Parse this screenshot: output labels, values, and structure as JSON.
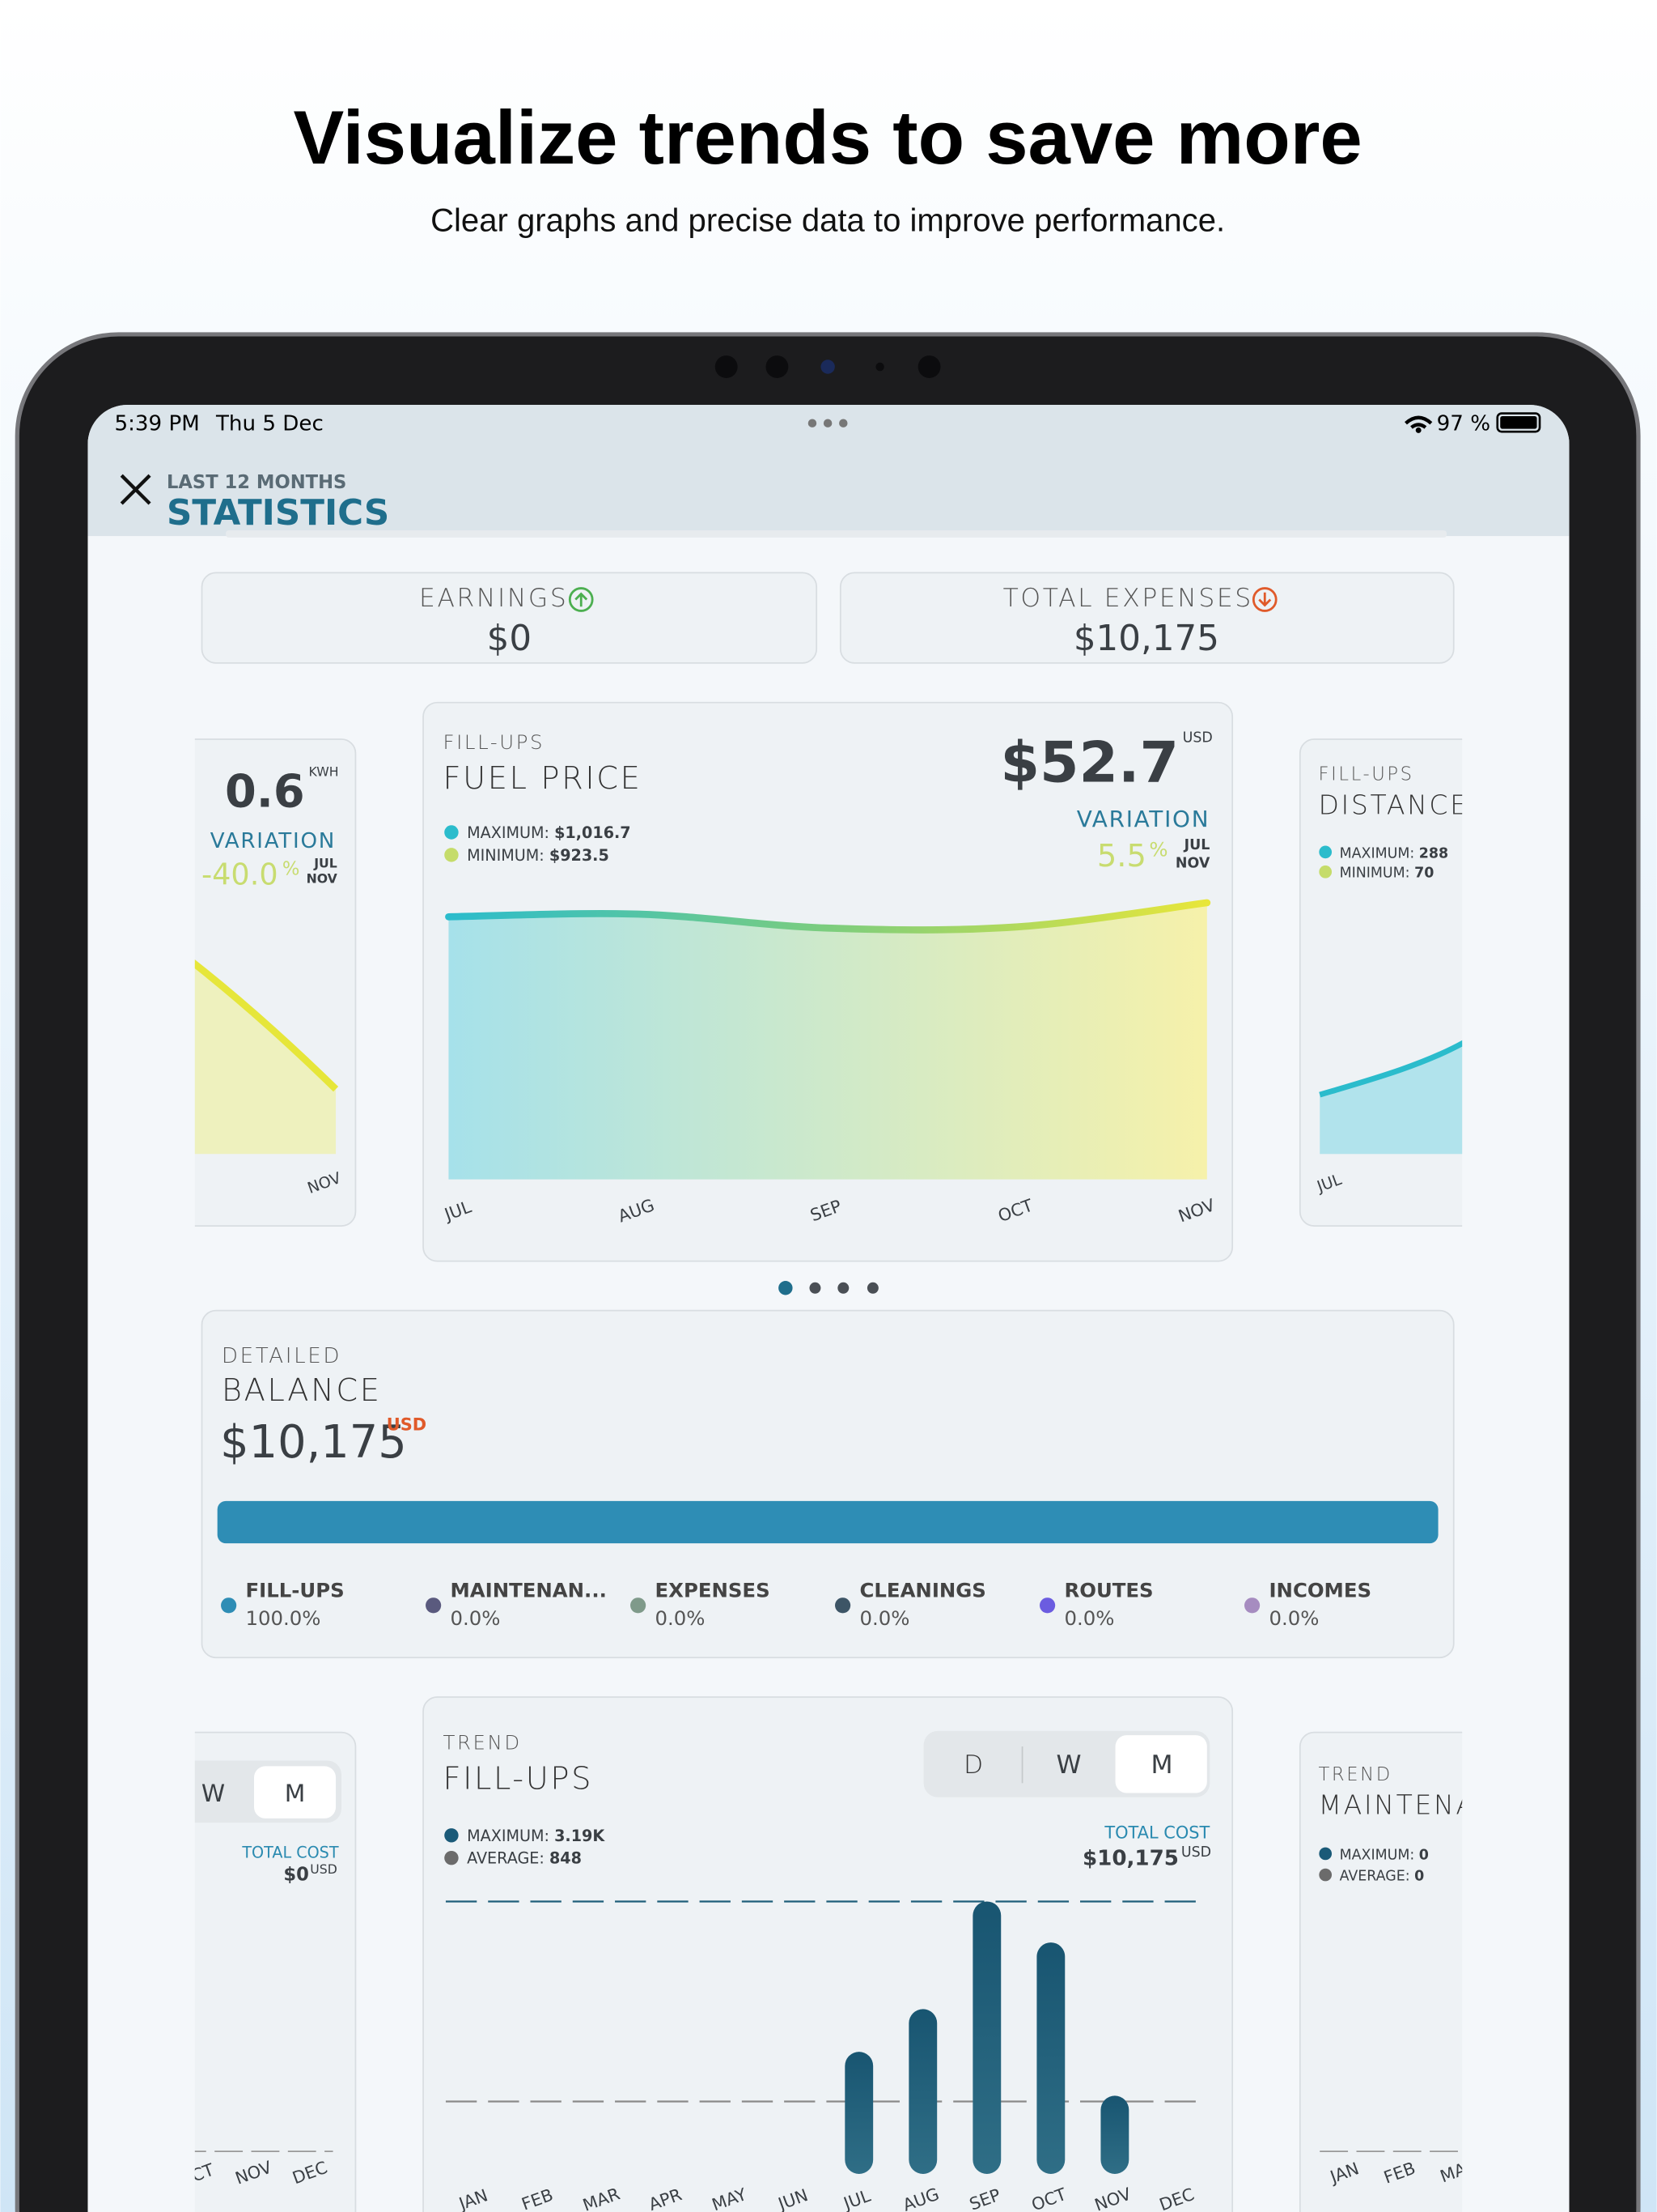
{
  "header": {
    "title": "Visualize trends to save more",
    "subtitle": "Clear graphs and precise data to improve performance."
  },
  "status_bar": {
    "time": "5:39 PM",
    "date": "Thu 5 Dec",
    "battery": "97 %"
  },
  "nav": {
    "overline": "LAST 12 MONTHS",
    "title": "STATISTICS"
  },
  "summary": [
    {
      "label": "EARNINGS",
      "value": "$0"
    },
    {
      "label": "TOTAL EXPENSES",
      "value": "$10,175"
    }
  ],
  "energy_card": {
    "value": "0.6",
    "unit": "KWH",
    "variation_label": "VARIATION",
    "variation": "-40.0",
    "variation_unit": "%",
    "from": "JUL",
    "to": "NOV",
    "x_label": "NOV"
  },
  "fuel_price_card": {
    "overline": "FILL-UPS",
    "title": "FUEL PRICE",
    "value": "$52.7",
    "unit": "USD",
    "variation_label": "VARIATION",
    "variation": "5.5",
    "variation_unit": "%",
    "from": "JUL",
    "to": "NOV",
    "legend": [
      {
        "name": "MAXIMUM:",
        "value": "$1,016.7"
      },
      {
        "name": "MINIMUM:",
        "value": "$923.5"
      }
    ],
    "chart_data": {
      "type": "area",
      "categories": [
        "JUL",
        "AUG",
        "SEP",
        "OCT",
        "NOV"
      ],
      "values": [
        965,
        975,
        923.5,
        928,
        1016.7
      ],
      "ylim": [
        0,
        1120
      ]
    }
  },
  "distance_card": {
    "overline": "FILL-UPS",
    "title": "DISTANCE",
    "legend": [
      {
        "name": "MAXIMUM:",
        "value": "288"
      },
      {
        "name": "MINIMUM:",
        "value": "70"
      }
    ],
    "x_label": "JUL"
  },
  "balance": {
    "overline": "DETAILED",
    "title": "BALANCE",
    "value": "$10,175",
    "unit": "USD",
    "items": [
      {
        "name": "FILL-UPS",
        "share": "100.0%"
      },
      {
        "name": "MAINTENAN...",
        "share": "0.0%"
      },
      {
        "name": "EXPENSES",
        "share": "0.0%"
      },
      {
        "name": "CLEANINGS",
        "share": "0.0%"
      },
      {
        "name": "ROUTES",
        "share": "0.0%"
      },
      {
        "name": "INCOMES",
        "share": "0.0%"
      }
    ]
  },
  "cost_card": {
    "periods": [
      "W",
      "M"
    ],
    "total_label": "TOTAL COST",
    "total": "$0",
    "total_unit": "USD",
    "x_labels": [
      "CT",
      "NOV",
      "DEC"
    ]
  },
  "trend_card": {
    "overline": "TREND",
    "title": "FILL-UPS",
    "periods": [
      "D",
      "W",
      "M"
    ],
    "legend_names": [
      "MAXIMUM:",
      "AVERAGE:"
    ],
    "total_label": "TOTAL COST",
    "total": "$10,175",
    "total_unit": "USD",
    "chart_data": {
      "type": "bar",
      "categories": [
        "JAN",
        "FEB",
        "MAR",
        "APR",
        "MAY",
        "JUN",
        "JUL",
        "AUG",
        "SEP",
        "OCT",
        "NOV",
        "DEC"
      ],
      "values": [
        0,
        0,
        0,
        0,
        0,
        0,
        1430,
        1930,
        3190,
        2710,
        915,
        0
      ],
      "ylim": [
        0,
        3320
      ],
      "color": "#1d5d78",
      "max_line": {
        "value": 3190,
        "label": "3.19K"
      },
      "avg_line": 848
    }
  },
  "maintenance_card": {
    "overline": "TREND",
    "title": "MAINTENA",
    "legend": [
      {
        "name": "MAXIMUM:",
        "value": "0"
      },
      {
        "name": "AVERAGE:",
        "value": "0"
      }
    ],
    "x_labels": [
      "JAN",
      "FEB",
      "MA"
    ]
  }
}
